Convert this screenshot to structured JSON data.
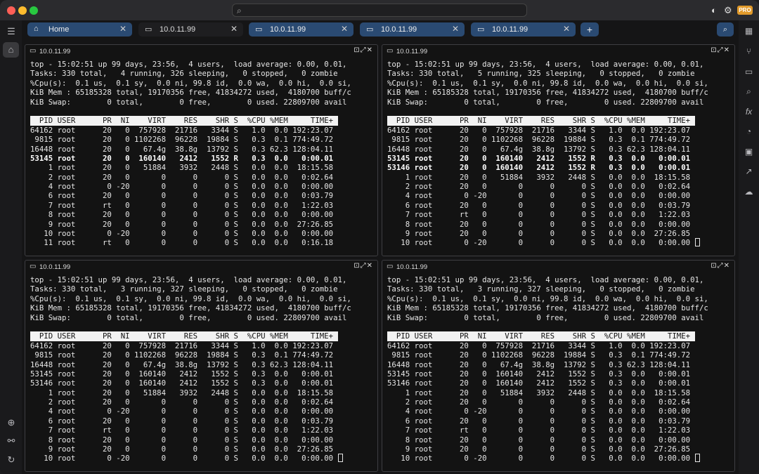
{
  "colors": {
    "accent": "#2a4a72",
    "close": "#ff5f57",
    "minimize": "#febc2e",
    "maximize": "#28c840",
    "pro": "#e19a2b"
  },
  "titlebar": {
    "pro_label": "PRO",
    "icons": [
      "shield-icon",
      "gear-icon"
    ]
  },
  "search": {
    "placeholder": ""
  },
  "left_sidebar": {
    "icons": [
      "list-icon",
      "home-icon",
      "add-circle-icon",
      "unlink-icon",
      "refresh-icon"
    ]
  },
  "right_sidebar": {
    "icons": [
      "grid-icon",
      "fork-icon",
      "folder-icon",
      "search-icon",
      "fx-icon",
      "pie-chart-icon",
      "toolbox-icon",
      "link-out-icon",
      "cloud-upload-icon"
    ]
  },
  "tabs": [
    {
      "label": "Home",
      "icon": "home-icon",
      "active": true
    },
    {
      "label": "10.0.11.99",
      "icon": "terminal-icon",
      "active": false
    },
    {
      "label": "10.0.11.99",
      "icon": "terminal-icon",
      "active": true
    },
    {
      "label": "10.0.11.99",
      "icon": "terminal-icon",
      "active": true
    },
    {
      "label": "10.0.11.99",
      "icon": "terminal-icon",
      "active": true
    }
  ],
  "panes": [
    {
      "title": "10.0.11.99",
      "summary": [
        "top - 15:02:51 up 99 days, 23:56,  4 users,  load average: 0.00, 0.01,",
        "Tasks: 330 total,   4 running, 326 sleeping,   0 stopped,   0 zombie",
        "%Cpu(s):  0.1 us,  0.1 sy,  0.0 ni, 99.8 id,  0.0 wa,  0.0 hi,  0.0 si,",
        "KiB Mem : 65185328 total, 19170356 free, 41834272 used,  4180700 buff/c",
        "KiB Swap:        0 total,        0 free,        0 used. 22809700 avail"
      ],
      "header": "  PID USER      PR  NI    VIRT    RES    SHR S  %CPU %MEM     TIME+ ",
      "rows": [
        {
          "text": "64162 root      20   0  757928  21716   3344 S   1.0  0.0 192:23.07",
          "bold": false
        },
        {
          "text": " 9815 root      20   0 1102268  96228  19884 S   0.3  0.1 774:49.72",
          "bold": false
        },
        {
          "text": "16448 root      20   0   67.4g  38.8g  13792 S   0.3 62.3 128:04.11",
          "bold": false
        },
        {
          "text": "53145 root      20   0  160140   2412   1552 R   0.3  0.0   0:00.01",
          "bold": true
        },
        {
          "text": "    1 root      20   0   51884   3932   2448 S   0.0  0.0  18:15.58",
          "bold": false
        },
        {
          "text": "    2 root      20   0       0      0      0 S   0.0  0.0   0:02.64",
          "bold": false
        },
        {
          "text": "    4 root       0 -20       0      0      0 S   0.0  0.0   0:00.00",
          "bold": false
        },
        {
          "text": "    6 root      20   0       0      0      0 S   0.0  0.0   0:03.79",
          "bold": false
        },
        {
          "text": "    7 root      rt   0       0      0      0 S   0.0  0.0   1:22.03",
          "bold": false
        },
        {
          "text": "    8 root      20   0       0      0      0 S   0.0  0.0   0:00.00",
          "bold": false
        },
        {
          "text": "    9 root      20   0       0      0      0 S   0.0  0.0  27:26.85",
          "bold": false
        },
        {
          "text": "   10 root       0 -20       0      0      0 S   0.0  0.0   0:00.00",
          "bold": false
        },
        {
          "text": "   11 root      rt   0       0      0      0 S   0.0  0.0   0:16.18",
          "bold": false
        }
      ],
      "cursor": false
    },
    {
      "title": "10.0.11.99",
      "summary": [
        "top - 15:02:51 up 99 days, 23:56,  4 users,  load average: 0.00, 0.01,",
        "Tasks: 330 total,   5 running, 325 sleeping,   0 stopped,   0 zombie",
        "%Cpu(s):  0.1 us,  0.1 sy,  0.0 ni, 99.8 id,  0.0 wa,  0.0 hi,  0.0 si,",
        "KiB Mem : 65185328 total, 19170356 free, 41834272 used,  4180700 buff/c",
        "KiB Swap:        0 total,        0 free,        0 used. 22809700 avail"
      ],
      "header": "  PID USER      PR  NI    VIRT    RES    SHR S  %CPU %MEM     TIME+ ",
      "rows": [
        {
          "text": "64162 root      20   0  757928  21716   3344 S   1.0  0.0 192:23.07",
          "bold": false
        },
        {
          "text": " 9815 root      20   0 1102268  96228  19884 S   0.3  0.1 774:49.72",
          "bold": false
        },
        {
          "text": "16448 root      20   0   67.4g  38.8g  13792 S   0.3 62.3 128:04.11",
          "bold": false
        },
        {
          "text": "53145 root      20   0  160140   2412   1552 R   0.3  0.0   0:00.01",
          "bold": true
        },
        {
          "text": "53146 root      20   0  160140   2412   1552 R   0.3  0.0   0:00.01",
          "bold": true
        },
        {
          "text": "    1 root      20   0   51884   3932   2448 S   0.0  0.0  18:15.58",
          "bold": false
        },
        {
          "text": "    2 root      20   0       0      0      0 S   0.0  0.0   0:02.64",
          "bold": false
        },
        {
          "text": "    4 root       0 -20       0      0      0 S   0.0  0.0   0:00.00",
          "bold": false
        },
        {
          "text": "    6 root      20   0       0      0      0 S   0.0  0.0   0:03.79",
          "bold": false
        },
        {
          "text": "    7 root      rt   0       0      0      0 S   0.0  0.0   1:22.03",
          "bold": false
        },
        {
          "text": "    8 root      20   0       0      0      0 S   0.0  0.0   0:00.00",
          "bold": false
        },
        {
          "text": "    9 root      20   0       0      0      0 S   0.0  0.0  27:26.85",
          "bold": false
        },
        {
          "text": "   10 root       0 -20       0      0      0 S   0.0  0.0   0:00.00",
          "bold": false
        }
      ],
      "cursor": true
    },
    {
      "title": "10.0.11.99",
      "summary": [
        "top - 15:02:51 up 99 days, 23:56,  4 users,  load average: 0.00, 0.01,",
        "Tasks: 330 total,   3 running, 327 sleeping,   0 stopped,   0 zombie",
        "%Cpu(s):  0.1 us,  0.1 sy,  0.0 ni, 99.8 id,  0.0 wa,  0.0 hi,  0.0 si,",
        "KiB Mem : 65185328 total, 19170356 free, 41834272 used,  4180700 buff/c",
        "KiB Swap:        0 total,        0 free,        0 used. 22809700 avail"
      ],
      "header": "  PID USER      PR  NI    VIRT    RES    SHR S  %CPU %MEM     TIME+ ",
      "rows": [
        {
          "text": "64162 root      20   0  757928  21716   3344 S   1.0  0.0 192:23.07",
          "bold": false
        },
        {
          "text": " 9815 root      20   0 1102268  96228  19884 S   0.3  0.1 774:49.72",
          "bold": false
        },
        {
          "text": "16448 root      20   0   67.4g  38.8g  13792 S   0.3 62.3 128:04.11",
          "bold": false
        },
        {
          "text": "53145 root      20   0  160140   2412   1552 S   0.3  0.0   0:00.01",
          "bold": false
        },
        {
          "text": "53146 root      20   0  160140   2412   1552 S   0.3  0.0   0:00.01",
          "bold": false
        },
        {
          "text": "    1 root      20   0   51884   3932   2448 S   0.0  0.0  18:15.58",
          "bold": false
        },
        {
          "text": "    2 root      20   0       0      0      0 S   0.0  0.0   0:02.64",
          "bold": false
        },
        {
          "text": "    4 root       0 -20       0      0      0 S   0.0  0.0   0:00.00",
          "bold": false
        },
        {
          "text": "    6 root      20   0       0      0      0 S   0.0  0.0   0:03.79",
          "bold": false
        },
        {
          "text": "    7 root      rt   0       0      0      0 S   0.0  0.0   1:22.03",
          "bold": false
        },
        {
          "text": "    8 root      20   0       0      0      0 S   0.0  0.0   0:00.00",
          "bold": false
        },
        {
          "text": "    9 root      20   0       0      0      0 S   0.0  0.0  27:26.85",
          "bold": false
        },
        {
          "text": "   10 root       0 -20       0      0      0 S   0.0  0.0   0:00.00",
          "bold": false
        }
      ],
      "cursor": true
    },
    {
      "title": "10.0.11.99",
      "summary": [
        "top - 15:02:51 up 99 days, 23:56,  4 users,  load average: 0.00, 0.01,",
        "Tasks: 330 total,   3 running, 327 sleeping,   0 stopped,   0 zombie",
        "%Cpu(s):  0.1 us,  0.1 sy,  0.0 ni, 99.8 id,  0.0 wa,  0.0 hi,  0.0 si,",
        "KiB Mem : 65185328 total, 19170356 free, 41834272 used,  4180700 buff/c",
        "KiB Swap:        0 total,        0 free,        0 used. 22809700 avail"
      ],
      "header": "  PID USER      PR  NI    VIRT    RES    SHR S  %CPU %MEM     TIME+ ",
      "rows": [
        {
          "text": "64162 root      20   0  757928  21716   3344 S   1.0  0.0 192:23.07",
          "bold": false
        },
        {
          "text": " 9815 root      20   0 1102268  96228  19884 S   0.3  0.1 774:49.72",
          "bold": false
        },
        {
          "text": "16448 root      20   0   67.4g  38.8g  13792 S   0.3 62.3 128:04.11",
          "bold": false
        },
        {
          "text": "53145 root      20   0  160140   2412   1552 S   0.3  0.0   0:00.01",
          "bold": false
        },
        {
          "text": "53146 root      20   0  160140   2412   1552 S   0.3  0.0   0:00.01",
          "bold": false
        },
        {
          "text": "    1 root      20   0   51884   3932   2448 S   0.0  0.0  18:15.58",
          "bold": false
        },
        {
          "text": "    2 root      20   0       0      0      0 S   0.0  0.0   0:02.64",
          "bold": false
        },
        {
          "text": "    4 root       0 -20       0      0      0 S   0.0  0.0   0:00.00",
          "bold": false
        },
        {
          "text": "    6 root      20   0       0      0      0 S   0.0  0.0   0:03.79",
          "bold": false
        },
        {
          "text": "    7 root      rt   0       0      0      0 S   0.0  0.0   1:22.03",
          "bold": false
        },
        {
          "text": "    8 root      20   0       0      0      0 S   0.0  0.0   0:00.00",
          "bold": false
        },
        {
          "text": "    9 root      20   0       0      0      0 S   0.0  0.0  27:26.85",
          "bold": false
        },
        {
          "text": "   10 root       0 -20       0      0      0 S   0.0  0.0   0:00.00",
          "bold": false
        }
      ],
      "cursor": true
    }
  ]
}
